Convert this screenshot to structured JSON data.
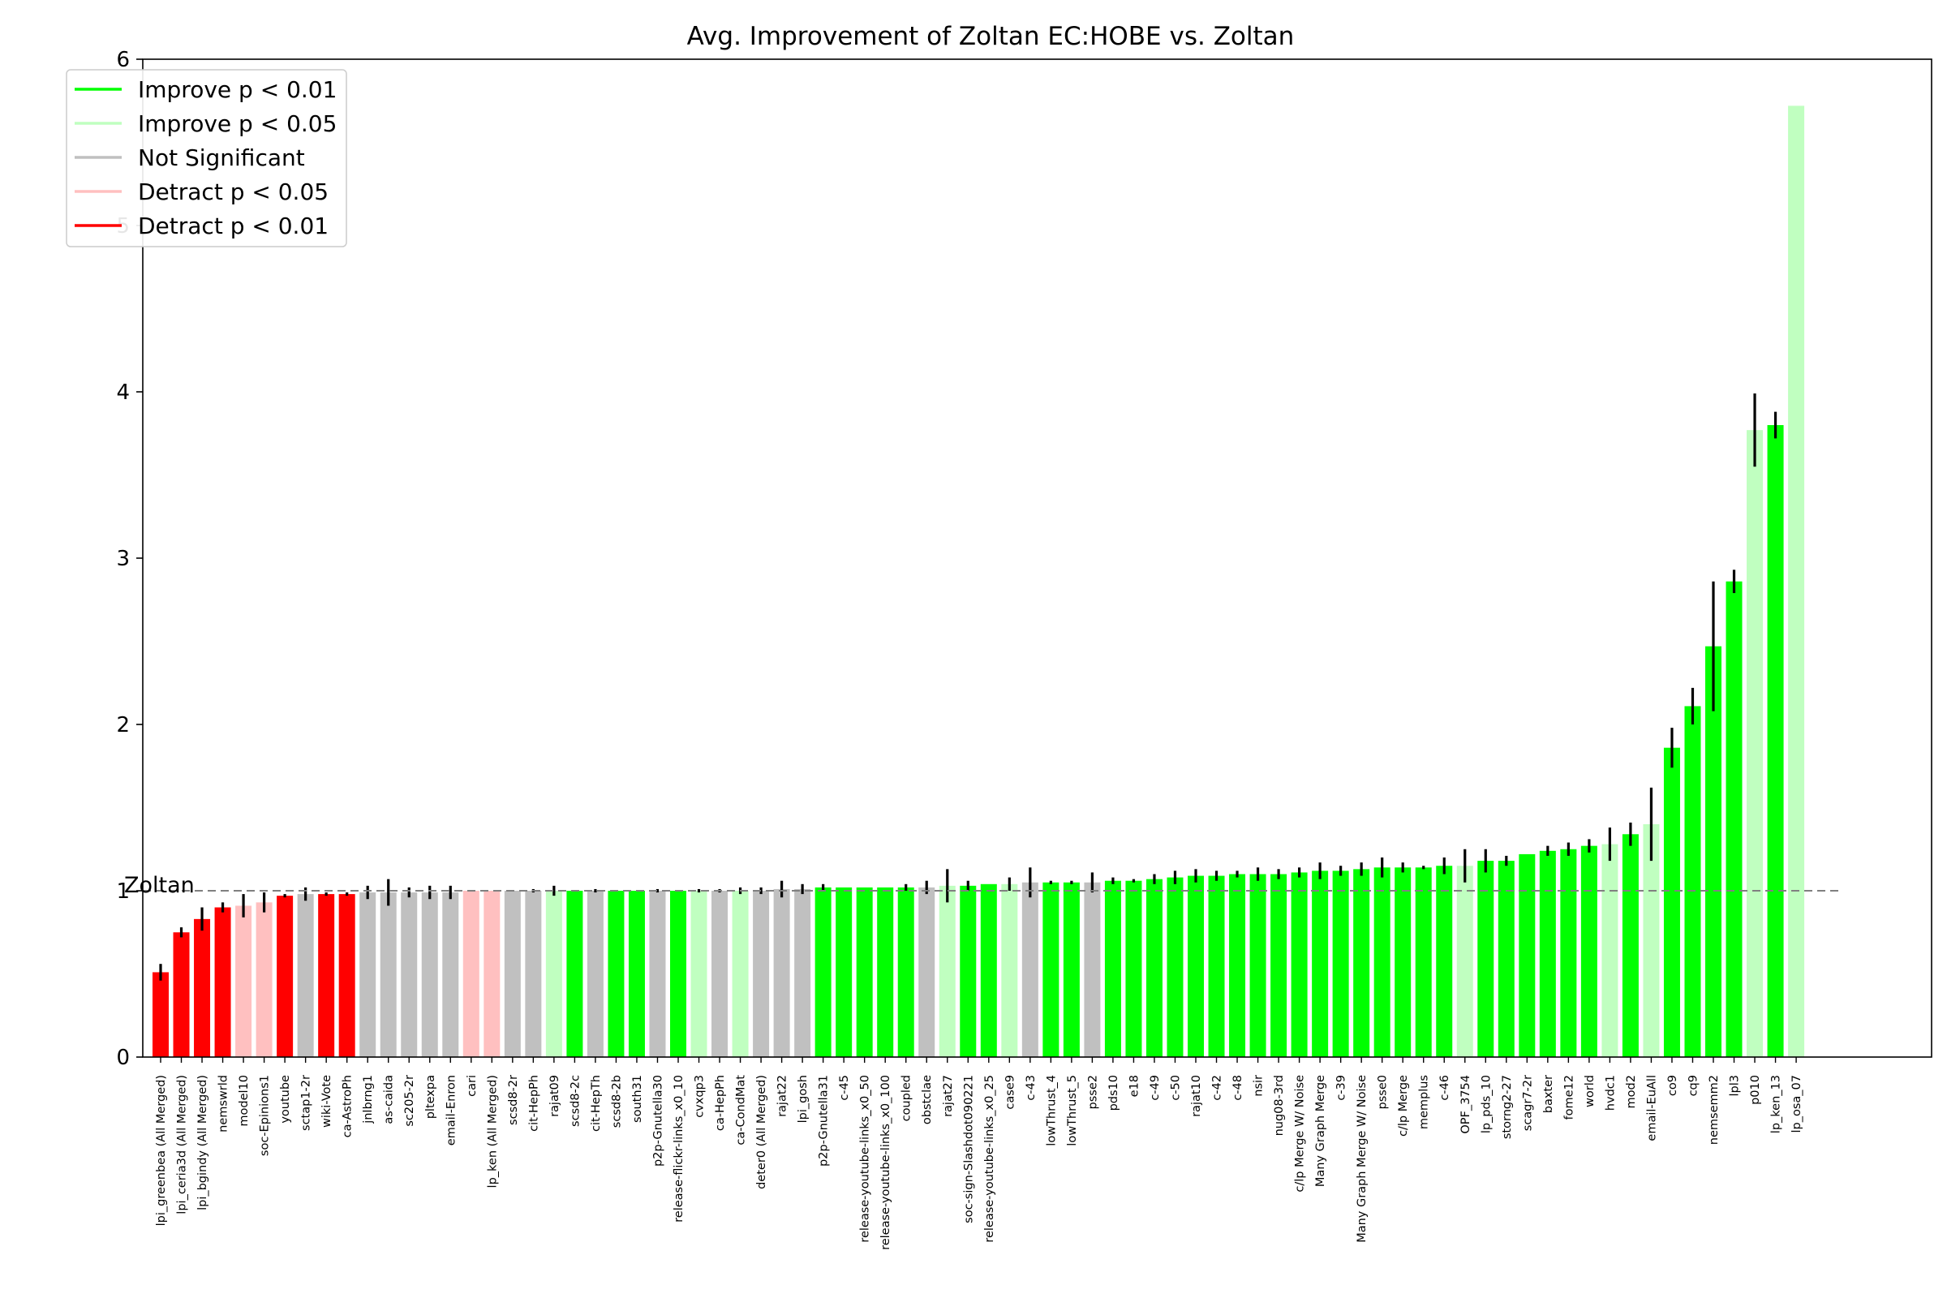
{
  "chart_data": {
    "type": "bar",
    "title": "Avg. Improvement of Zoltan EC:HOBE vs. Zoltan",
    "xlabel": "",
    "ylabel": "",
    "ylim": [
      0,
      6
    ],
    "yticks": [
      "0",
      "1",
      "2",
      "3",
      "4",
      "5",
      "6"
    ],
    "grid": false,
    "legend_position": "top-left",
    "reference_line": {
      "value": 1,
      "label": "Zoltan",
      "style": "dashed",
      "color": "#808080"
    },
    "colors": {
      "improve_01": "#00ff00",
      "improve_05": "#c0ffc0",
      "not_significant": "#c0c0c0",
      "detract_05": "#ffc0c0",
      "detract_01": "#ff0000",
      "error_bar": "#000000"
    },
    "legend": [
      {
        "key": "improve_01",
        "label": "Improve p < 0.01"
      },
      {
        "key": "improve_05",
        "label": "Improve p < 0.05"
      },
      {
        "key": "not_significant",
        "label": "Not Significant"
      },
      {
        "key": "detract_05",
        "label": "Detract p < 0.05"
      },
      {
        "key": "detract_01",
        "label": "Detract p < 0.01"
      }
    ],
    "bars": [
      {
        "label": "lpi_greenbea (All Merged)",
        "value": 0.51,
        "err": 0.05,
        "sig": "detract_01"
      },
      {
        "label": "lpi_ceria3d (All Merged)",
        "value": 0.75,
        "err": 0.03,
        "sig": "detract_01"
      },
      {
        "label": "lpi_bgindy (All Merged)",
        "value": 0.83,
        "err": 0.07,
        "sig": "detract_01"
      },
      {
        "label": "nemswrld",
        "value": 0.9,
        "err": 0.03,
        "sig": "detract_01"
      },
      {
        "label": "model10",
        "value": 0.91,
        "err": 0.07,
        "sig": "detract_05"
      },
      {
        "label": "soc-Epinions1",
        "value": 0.93,
        "err": 0.06,
        "sig": "detract_05"
      },
      {
        "label": "youtube",
        "value": 0.97,
        "err": 0.01,
        "sig": "detract_01"
      },
      {
        "label": "sctap1-2r",
        "value": 0.98,
        "err": 0.04,
        "sig": "not_significant"
      },
      {
        "label": "wiki-Vote",
        "value": 0.98,
        "err": 0.01,
        "sig": "detract_01"
      },
      {
        "label": "ca-AstroPh",
        "value": 0.98,
        "err": 0.01,
        "sig": "detract_01"
      },
      {
        "label": "jnlbrng1",
        "value": 0.99,
        "err": 0.04,
        "sig": "not_significant"
      },
      {
        "label": "as-caida",
        "value": 0.99,
        "err": 0.08,
        "sig": "not_significant"
      },
      {
        "label": "sc205-2r",
        "value": 0.99,
        "err": 0.03,
        "sig": "not_significant"
      },
      {
        "label": "pltexpa",
        "value": 0.99,
        "err": 0.04,
        "sig": "not_significant"
      },
      {
        "label": "email-Enron",
        "value": 0.99,
        "err": 0.04,
        "sig": "not_significant"
      },
      {
        "label": "cari",
        "value": 1.0,
        "err": 0.0,
        "sig": "detract_05"
      },
      {
        "label": "lp_ken (All Merged)",
        "value": 1.0,
        "err": 0.0,
        "sig": "detract_05"
      },
      {
        "label": "scsd8-2r",
        "value": 1.0,
        "err": 0.0,
        "sig": "not_significant"
      },
      {
        "label": "cit-HepPh",
        "value": 1.0,
        "err": 0.01,
        "sig": "not_significant"
      },
      {
        "label": "rajat09",
        "value": 1.0,
        "err": 0.03,
        "sig": "improve_05"
      },
      {
        "label": "scsd8-2c",
        "value": 1.0,
        "err": 0.0,
        "sig": "improve_01"
      },
      {
        "label": "cit-HepTh",
        "value": 1.0,
        "err": 0.01,
        "sig": "not_significant"
      },
      {
        "label": "scsd8-2b",
        "value": 1.0,
        "err": 0.0,
        "sig": "improve_01"
      },
      {
        "label": "south31",
        "value": 1.0,
        "err": 0.0,
        "sig": "improve_01"
      },
      {
        "label": "p2p-Gnutella30",
        "value": 1.0,
        "err": 0.01,
        "sig": "not_significant"
      },
      {
        "label": "release-flickr-links_x0_10",
        "value": 1.0,
        "err": 0.0,
        "sig": "improve_01"
      },
      {
        "label": "cvxqp3",
        "value": 1.0,
        "err": 0.01,
        "sig": "improve_05"
      },
      {
        "label": "ca-HepPh",
        "value": 1.0,
        "err": 0.01,
        "sig": "not_significant"
      },
      {
        "label": "ca-CondMat",
        "value": 1.0,
        "err": 0.02,
        "sig": "improve_05"
      },
      {
        "label": "deter0 (All Merged)",
        "value": 1.0,
        "err": 0.02,
        "sig": "not_significant"
      },
      {
        "label": "rajat22",
        "value": 1.01,
        "err": 0.05,
        "sig": "not_significant"
      },
      {
        "label": "lpi_gosh",
        "value": 1.01,
        "err": 0.03,
        "sig": "not_significant"
      },
      {
        "label": "p2p-Gnutella31",
        "value": 1.02,
        "err": 0.02,
        "sig": "improve_01"
      },
      {
        "label": "c-45",
        "value": 1.02,
        "err": 0.0,
        "sig": "improve_01"
      },
      {
        "label": "release-youtube-links_x0_50",
        "value": 1.02,
        "err": 0.0,
        "sig": "improve_01"
      },
      {
        "label": "release-youtube-links_x0_100",
        "value": 1.02,
        "err": 0.0,
        "sig": "improve_01"
      },
      {
        "label": "coupled",
        "value": 1.02,
        "err": 0.02,
        "sig": "improve_01"
      },
      {
        "label": "obstclae",
        "value": 1.02,
        "err": 0.04,
        "sig": "not_significant"
      },
      {
        "label": "rajat27",
        "value": 1.03,
        "err": 0.1,
        "sig": "improve_05"
      },
      {
        "label": "soc-sign-Slashdot090221",
        "value": 1.03,
        "err": 0.03,
        "sig": "improve_01"
      },
      {
        "label": "release-youtube-links_x0_25",
        "value": 1.04,
        "err": 0.0,
        "sig": "improve_01"
      },
      {
        "label": "case9",
        "value": 1.04,
        "err": 0.04,
        "sig": "improve_05"
      },
      {
        "label": "c-43",
        "value": 1.05,
        "err": 0.09,
        "sig": "not_significant"
      },
      {
        "label": "lowThrust_4",
        "value": 1.05,
        "err": 0.01,
        "sig": "improve_01"
      },
      {
        "label": "lowThrust_5",
        "value": 1.05,
        "err": 0.01,
        "sig": "improve_01"
      },
      {
        "label": "psse2",
        "value": 1.05,
        "err": 0.06,
        "sig": "not_significant"
      },
      {
        "label": "pds10",
        "value": 1.06,
        "err": 0.02,
        "sig": "improve_01"
      },
      {
        "label": "e18",
        "value": 1.06,
        "err": 0.01,
        "sig": "improve_01"
      },
      {
        "label": "c-49",
        "value": 1.07,
        "err": 0.03,
        "sig": "improve_01"
      },
      {
        "label": "c-50",
        "value": 1.08,
        "err": 0.04,
        "sig": "improve_01"
      },
      {
        "label": "rajat10",
        "value": 1.09,
        "err": 0.04,
        "sig": "improve_01"
      },
      {
        "label": "c-42",
        "value": 1.09,
        "err": 0.03,
        "sig": "improve_01"
      },
      {
        "label": "c-48",
        "value": 1.1,
        "err": 0.02,
        "sig": "improve_01"
      },
      {
        "label": "nsir",
        "value": 1.1,
        "err": 0.04,
        "sig": "improve_01"
      },
      {
        "label": "nug08-3rd",
        "value": 1.1,
        "err": 0.03,
        "sig": "improve_01"
      },
      {
        "label": "c/lp Merge W/ Noise",
        "value": 1.11,
        "err": 0.03,
        "sig": "improve_01"
      },
      {
        "label": "Many Graph Merge",
        "value": 1.12,
        "err": 0.05,
        "sig": "improve_01"
      },
      {
        "label": "c-39",
        "value": 1.12,
        "err": 0.03,
        "sig": "improve_01"
      },
      {
        "label": "Many Graph Merge W/ Noise",
        "value": 1.13,
        "err": 0.04,
        "sig": "improve_01"
      },
      {
        "label": "psse0",
        "value": 1.14,
        "err": 0.06,
        "sig": "improve_01"
      },
      {
        "label": "c/lp Merge",
        "value": 1.14,
        "err": 0.03,
        "sig": "improve_01"
      },
      {
        "label": "memplus",
        "value": 1.14,
        "err": 0.01,
        "sig": "improve_01"
      },
      {
        "label": "c-46",
        "value": 1.15,
        "err": 0.05,
        "sig": "improve_01"
      },
      {
        "label": "OPF_3754",
        "value": 1.15,
        "err": 0.1,
        "sig": "improve_05"
      },
      {
        "label": "lp_pds_10",
        "value": 1.18,
        "err": 0.07,
        "sig": "improve_01"
      },
      {
        "label": "storng2-27",
        "value": 1.18,
        "err": 0.03,
        "sig": "improve_01"
      },
      {
        "label": "scagr7-2r",
        "value": 1.22,
        "err": 0.0,
        "sig": "improve_01"
      },
      {
        "label": "baxter",
        "value": 1.24,
        "err": 0.03,
        "sig": "improve_01"
      },
      {
        "label": "fome12",
        "value": 1.25,
        "err": 0.04,
        "sig": "improve_01"
      },
      {
        "label": "world",
        "value": 1.27,
        "err": 0.04,
        "sig": "improve_01"
      },
      {
        "label": "hvdc1",
        "value": 1.28,
        "err": 0.1,
        "sig": "improve_05"
      },
      {
        "label": "mod2",
        "value": 1.34,
        "err": 0.07,
        "sig": "improve_01"
      },
      {
        "label": "email-EuAll",
        "value": 1.4,
        "err": 0.22,
        "sig": "improve_05"
      },
      {
        "label": "co9",
        "value": 1.86,
        "err": 0.12,
        "sig": "improve_01"
      },
      {
        "label": "cq9",
        "value": 2.11,
        "err": 0.11,
        "sig": "improve_01"
      },
      {
        "label": "nemsemm2",
        "value": 2.47,
        "err": 0.39,
        "sig": "improve_01"
      },
      {
        "label": "lpl3",
        "value": 2.86,
        "err": 0.07,
        "sig": "improve_01"
      },
      {
        "label": "p010",
        "value": 3.77,
        "err": 0.22,
        "sig": "improve_05"
      },
      {
        "label": "lp_ken_13",
        "value": 3.8,
        "err": 0.08,
        "sig": "improve_01"
      },
      {
        "label": "lp_osa_07",
        "value": 5.72,
        "err": 0.0,
        "sig": "improve_05"
      }
    ]
  }
}
